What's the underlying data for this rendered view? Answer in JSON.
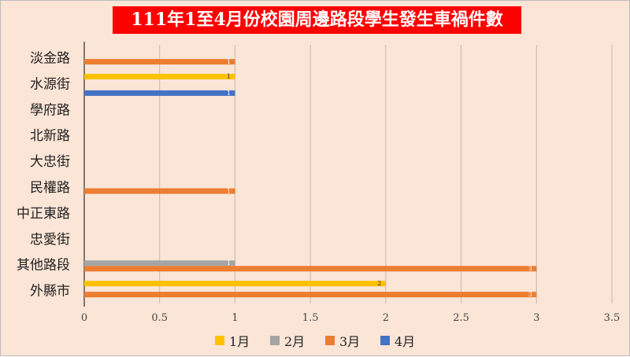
{
  "chart_data": {
    "type": "bar",
    "orientation": "horizontal",
    "title": "111年1至4月份校園周邊路段學生發生車禍件數",
    "categories": [
      "淡金路",
      "水源街",
      "學府路",
      "北新路",
      "大忠街",
      "民權路",
      "中正東路",
      "忠愛街",
      "其他路段",
      "外縣市"
    ],
    "series": [
      {
        "name": "1月",
        "color": "#ffc000",
        "values": [
          0,
          1,
          0,
          0,
          0,
          0,
          0,
          0,
          0,
          2
        ]
      },
      {
        "name": "2月",
        "color": "#a5a5a5",
        "values": [
          0,
          0,
          0,
          0,
          0,
          0,
          0,
          0,
          1,
          0
        ]
      },
      {
        "name": "3月",
        "color": "#ed7d31",
        "values": [
          1,
          0,
          0,
          0,
          0,
          1,
          0,
          0,
          3,
          3
        ]
      },
      {
        "name": "4月",
        "color": "#4472c4",
        "values": [
          0,
          1,
          0,
          0,
          0,
          0,
          0,
          0,
          0,
          0
        ]
      }
    ],
    "xlim": [
      0,
      3.5
    ],
    "xticks": [
      "0",
      "0.5",
      "1",
      "1.5",
      "2",
      "2.5",
      "3",
      "3.5"
    ],
    "grid": true,
    "legend": "bottom",
    "xlabel": "",
    "ylabel": ""
  }
}
